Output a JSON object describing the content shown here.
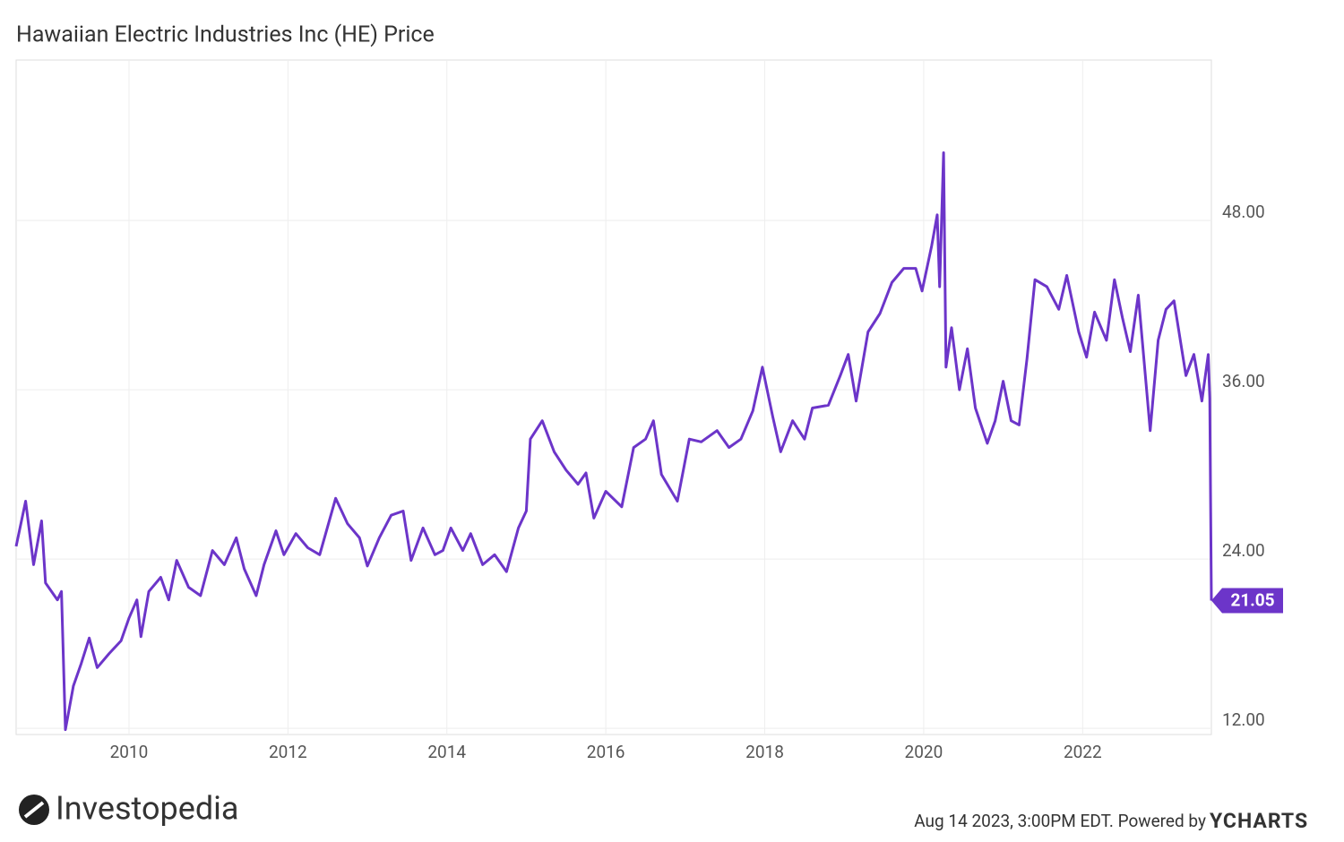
{
  "chart_data": {
    "type": "line",
    "title": "Hawaiian Electric Industries Inc (HE) Price",
    "x": [
      2008.58,
      2008.7,
      2008.8,
      2008.9,
      2008.95,
      2009.1,
      2009.15,
      2009.2,
      2009.3,
      2009.4,
      2009.5,
      2009.6,
      2009.75,
      2009.9,
      2010.0,
      2010.1,
      2010.15,
      2010.25,
      2010.4,
      2010.5,
      2010.6,
      2010.75,
      2010.9,
      2011.05,
      2011.2,
      2011.35,
      2011.45,
      2011.6,
      2011.7,
      2011.85,
      2011.95,
      2012.1,
      2012.25,
      2012.4,
      2012.5,
      2012.6,
      2012.75,
      2012.9,
      2013.0,
      2013.15,
      2013.3,
      2013.45,
      2013.55,
      2013.7,
      2013.85,
      2013.95,
      2014.05,
      2014.2,
      2014.3,
      2014.45,
      2014.6,
      2014.75,
      2014.9,
      2015.0,
      2015.05,
      2015.2,
      2015.35,
      2015.5,
      2015.65,
      2015.75,
      2015.85,
      2016.0,
      2016.2,
      2016.35,
      2016.5,
      2016.6,
      2016.7,
      2016.9,
      2017.05,
      2017.2,
      2017.4,
      2017.55,
      2017.7,
      2017.85,
      2017.97,
      2018.1,
      2018.2,
      2018.35,
      2018.5,
      2018.6,
      2018.8,
      2018.95,
      2019.05,
      2019.15,
      2019.3,
      2019.45,
      2019.6,
      2019.75,
      2019.9,
      2019.98,
      2020.1,
      2020.17,
      2020.2,
      2020.25,
      2020.28,
      2020.35,
      2020.45,
      2020.55,
      2020.65,
      2020.8,
      2020.9,
      2021.0,
      2021.1,
      2021.2,
      2021.3,
      2021.4,
      2021.55,
      2021.7,
      2021.8,
      2021.95,
      2022.05,
      2022.15,
      2022.3,
      2022.4,
      2022.5,
      2022.6,
      2022.7,
      2022.85,
      2022.95,
      2023.05,
      2023.15,
      2023.3,
      2023.4,
      2023.5,
      2023.58,
      2023.6,
      2023.62
    ],
    "series": [
      {
        "name": "HE",
        "color": "#6c35c9",
        "values": [
          24.9,
          28.1,
          23.6,
          26.7,
          22.3,
          21.1,
          21.7,
          11.9,
          15,
          16.6,
          18.4,
          16.3,
          17.3,
          18.2,
          19.8,
          21.1,
          18.5,
          21.7,
          22.7,
          21.1,
          23.9,
          22.0,
          21.4,
          24.6,
          23.6,
          25.5,
          23.3,
          21.4,
          23.6,
          26.0,
          24.3,
          25.8,
          24.8,
          24.3,
          26.3,
          28.3,
          26.5,
          25.5,
          23.5,
          25.5,
          27.1,
          27.4,
          23.9,
          26.2,
          24.3,
          24.6,
          26.2,
          24.6,
          25.8,
          23.6,
          24.3,
          23.1,
          26.2,
          27.4,
          32.5,
          33.8,
          31.6,
          30.3,
          29.3,
          30.1,
          26.9,
          28.8,
          27.7,
          31.9,
          32.5,
          33.8,
          30.0,
          28.1,
          32.5,
          32.3,
          33.1,
          31.9,
          32.5,
          34.5,
          37.6,
          34.1,
          31.6,
          33.8,
          32.5,
          34.7,
          34.9,
          37.0,
          38.5,
          35.2,
          40.1,
          41.4,
          43.6,
          44.6,
          44.6,
          43.0,
          46.2,
          48.4,
          43.3,
          52.8,
          37.6,
          40.4,
          36.0,
          38.9,
          34.7,
          32.2,
          33.8,
          36.6,
          33.8,
          33.5,
          38.2,
          43.8,
          43.3,
          41.7,
          44.1,
          40.1,
          38.3,
          41.5,
          39.5,
          43.8,
          41.1,
          38.7,
          42.7,
          33.1,
          39.5,
          41.7,
          42.3,
          37.0,
          38.5,
          35.2,
          38.5,
          35.4,
          21.05
        ]
      }
    ],
    "xlim": [
      2008.58,
      2023.62
    ],
    "ylim": [
      11.56,
      59.37
    ],
    "xticks": [
      2010,
      2012,
      2014,
      2016,
      2018,
      2020,
      2022
    ],
    "yticks": [
      {
        "value": 12,
        "label": "12.00"
      },
      {
        "value": 24,
        "label": "24.00"
      },
      {
        "value": 36,
        "label": "36.00"
      },
      {
        "value": 48,
        "label": "48.00"
      }
    ],
    "grid": true,
    "logo": "Investopedia",
    "source": "Aug 14 2023, 3:00PM EDT. Powered by",
    "brand": "YCHARTS"
  }
}
